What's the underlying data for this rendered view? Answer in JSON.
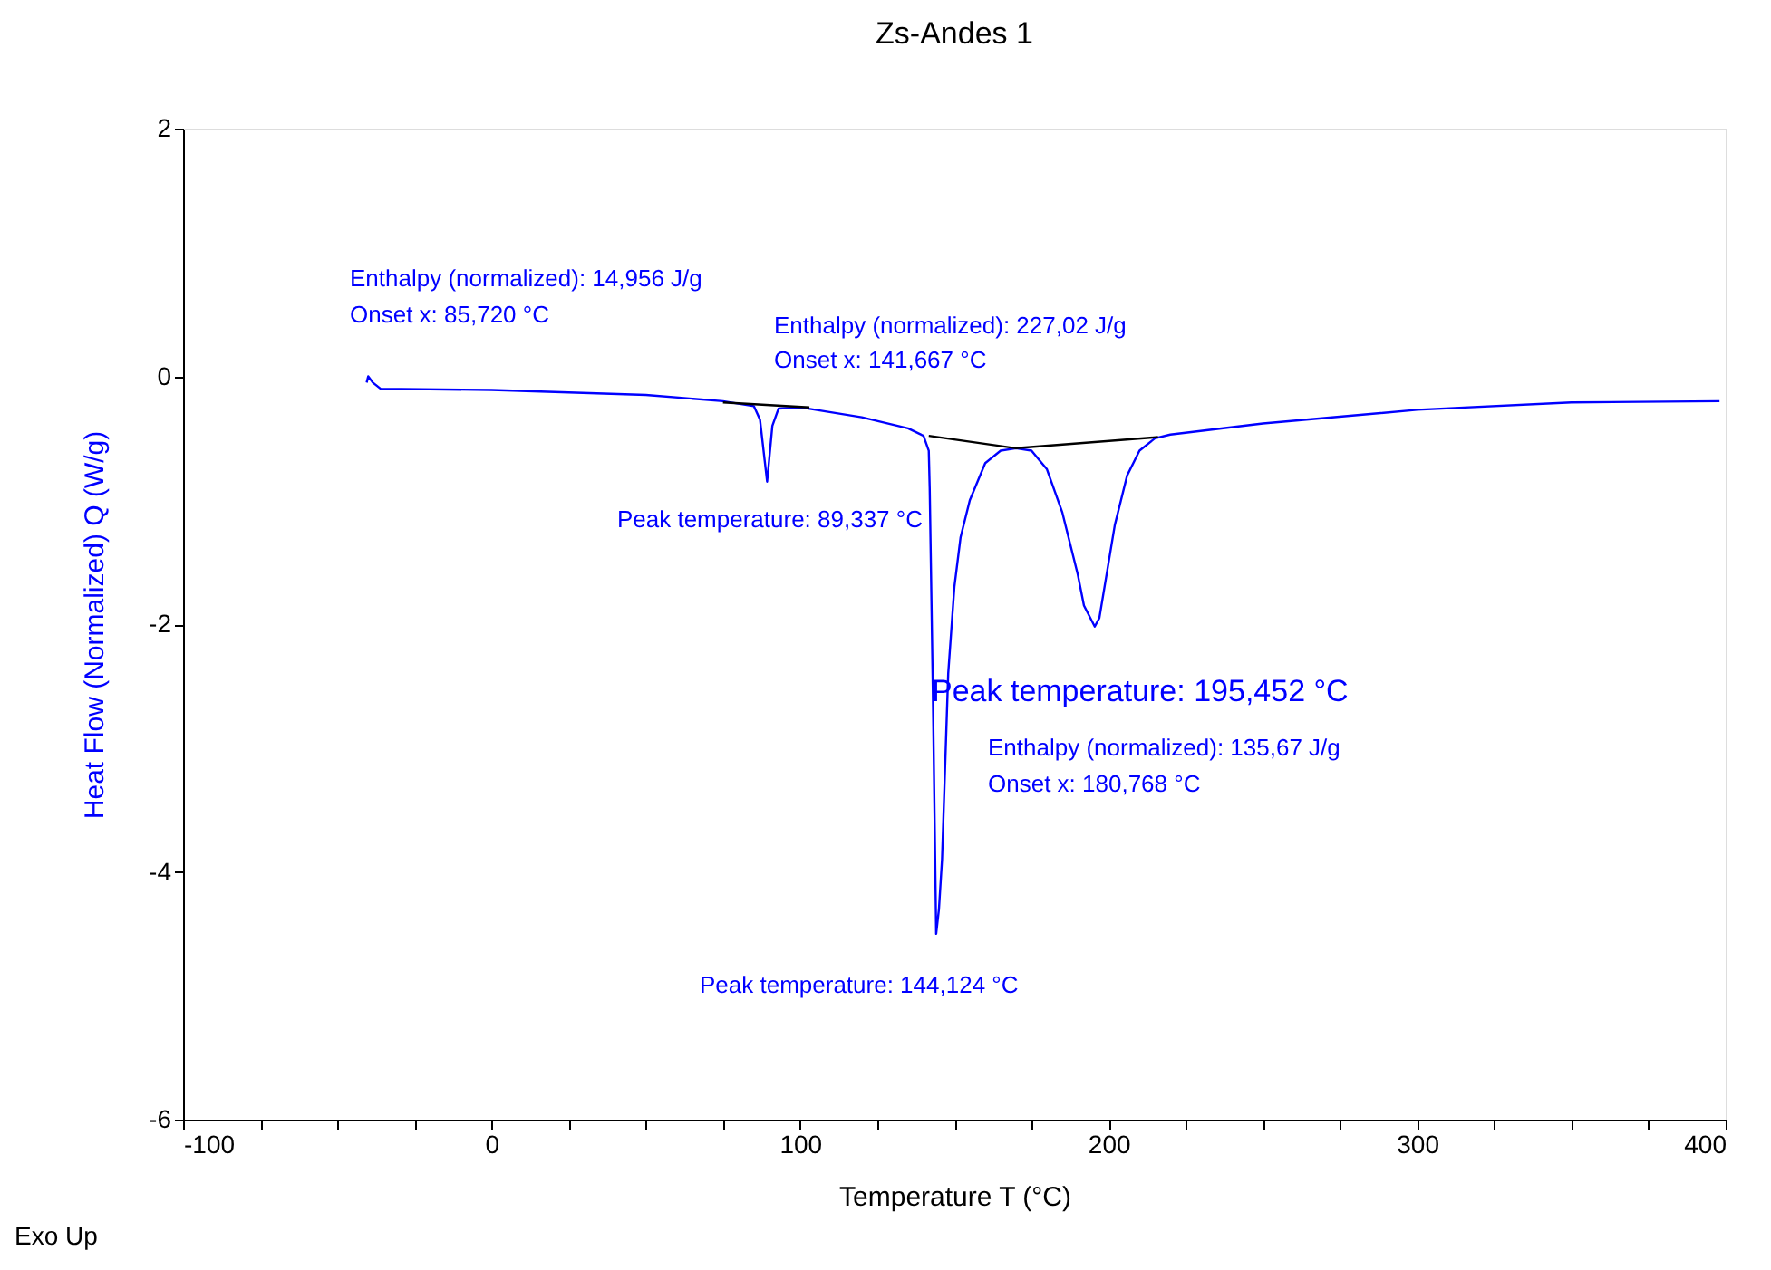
{
  "chart_data": {
    "type": "line",
    "title": "Zs-Andes 1",
    "xlabel": "Temperature  T  (°C)",
    "ylabel": "Heat Flow (Normalized)  Q  (W/g)",
    "xlim": [
      -100,
      400
    ],
    "ylim": [
      -6,
      2
    ],
    "xticks": [
      -100,
      {
        "value": -75,
        "label": null
      },
      {
        "value": -50,
        "label": null
      },
      {
        "value": -25,
        "label": null
      },
      0,
      {
        "value": 25,
        "label": null
      },
      {
        "value": 50,
        "label": null
      },
      {
        "value": 75,
        "label": null
      },
      100,
      {
        "value": 125,
        "label": null
      },
      {
        "value": 150,
        "label": null
      },
      {
        "value": 175,
        "label": null
      },
      200,
      {
        "value": 225,
        "label": null
      },
      {
        "value": 250,
        "label": null
      },
      {
        "value": 275,
        "label": null
      },
      300,
      {
        "value": 325,
        "label": null
      },
      {
        "value": 350,
        "label": null
      },
      {
        "value": 375,
        "label": null
      },
      400
    ],
    "yticks": [
      -6,
      -4,
      -2,
      0,
      2
    ],
    "grid": false,
    "marker": "none",
    "line_style": "solid",
    "series": [
      {
        "color": "#0000ff",
        "x": [
          -40.5,
          -40,
          -38.5,
          -36,
          0,
          50,
          75,
          80,
          85,
          87,
          89.3,
          91,
          93,
          100,
          120,
          135,
          140,
          141.7,
          142,
          143,
          144.1,
          145,
          146,
          148,
          150,
          152,
          155,
          160,
          165,
          170,
          175,
          180,
          185,
          187,
          190,
          192,
          195.5,
          197,
          200,
          202,
          204,
          206,
          210,
          215,
          220,
          250,
          300,
          350,
          398
        ],
        "values": [
          -0.05,
          0.0,
          -0.05,
          -0.1,
          -0.11,
          -0.15,
          -0.2,
          -0.22,
          -0.24,
          -0.35,
          -0.85,
          -0.4,
          -0.26,
          -0.25,
          -0.33,
          -0.42,
          -0.48,
          -0.6,
          -0.9,
          -2.5,
          -4.5,
          -4.3,
          -3.9,
          -2.4,
          -1.7,
          -1.3,
          -1,
          -0.7,
          -0.6,
          -0.58,
          -0.6,
          -0.75,
          -1.1,
          -1.3,
          -1.6,
          -1.85,
          -2.02,
          -1.95,
          -1.5,
          -1.2,
          -1.0,
          -0.8,
          -0.6,
          -0.5,
          -0.47,
          -0.38,
          -0.27,
          -0.21,
          -0.2
        ]
      },
      {
        "color": "#000000",
        "x": [
          75,
          103
        ],
        "values": [
          -0.21,
          -0.25
        ]
      },
      {
        "color": "#000000",
        "x": [
          141.7,
          170,
          216
        ],
        "values": [
          -0.48,
          -0.58,
          -0.49
        ]
      }
    ],
    "annotations": [
      "Enthalpy (normalized): 14,956 J/g",
      "Onset x: 85,720 °C",
      "Enthalpy (normalized): 227,02 J/g",
      "Onset x: 141,667 °C",
      "Peak temperature: 89,337 °C",
      "Peak temperature: 144,124 °C",
      "Peak temperature: 195,452 °C",
      "Enthalpy (normalized): 135,67 J/g",
      "Onset x: 180,768 °C",
      "Exo Up"
    ]
  }
}
